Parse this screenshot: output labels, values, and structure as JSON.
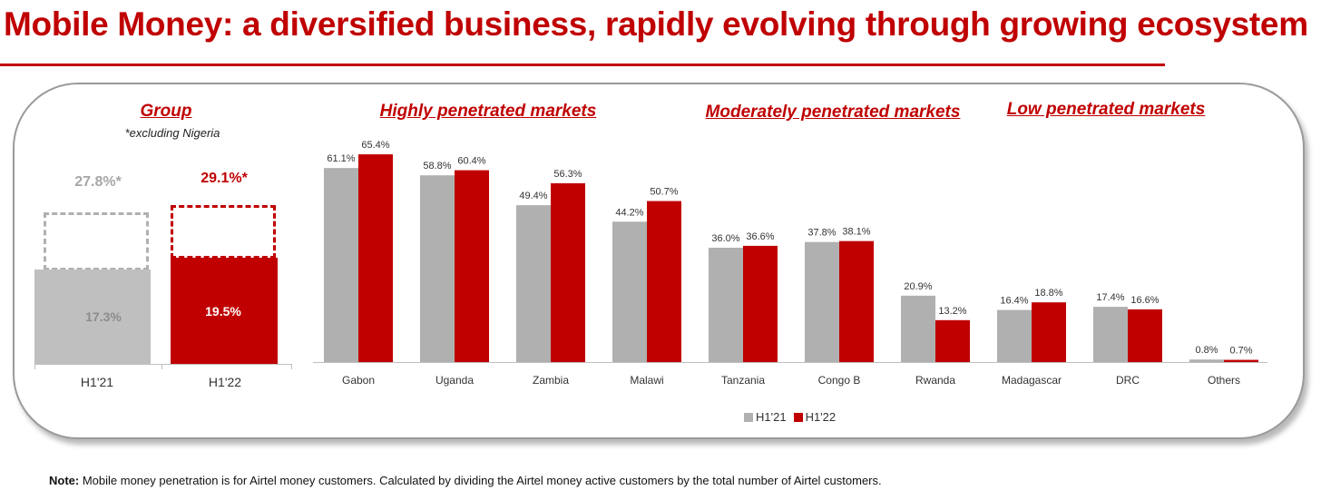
{
  "title": "Mobile Money: a diversified business, rapidly evolving through growing ecosystem",
  "colors": {
    "h121": "#b0b0b0",
    "h122": "#c00000",
    "accent": "#c00000"
  },
  "sections": {
    "group": "Group",
    "group_note": "*excluding Nigeria",
    "high": "Highly penetrated markets",
    "moderate": "Moderately penetrated markets",
    "low": "Low penetrated markets"
  },
  "group_chart": {
    "categories": [
      "H1'21",
      "H1'22"
    ],
    "values": [
      17.3,
      19.5
    ],
    "value_labels": [
      "17.3%",
      "19.5%"
    ],
    "totals": [
      27.8,
      29.1
    ],
    "total_labels": [
      "27.8%*",
      "29.1%*"
    ]
  },
  "chart_data": {
    "type": "bar",
    "categories": [
      "Gabon",
      "Uganda",
      "Zambia",
      "Malawi",
      "Tanzania",
      "Congo B",
      "Rwanda",
      "Madagascar",
      "DRC",
      "Others"
    ],
    "series": [
      {
        "name": "H1'21",
        "values": [
          61.1,
          58.8,
          49.4,
          44.2,
          36.0,
          37.8,
          20.9,
          16.4,
          17.4,
          0.8
        ],
        "labels": [
          "61.1%",
          "58.8%",
          "49.4%",
          "44.2%",
          "36.0%",
          "37.8%",
          "20.9%",
          "16.4%",
          "17.4%",
          "0.8%"
        ]
      },
      {
        "name": "H1'22",
        "values": [
          65.4,
          60.4,
          56.3,
          50.7,
          36.6,
          38.1,
          13.2,
          18.8,
          16.6,
          0.7
        ],
        "labels": [
          "65.4%",
          "60.4%",
          "56.3%",
          "50.7%",
          "36.6%",
          "38.1%",
          "13.2%",
          "18.8%",
          "16.6%",
          "0.7%"
        ]
      }
    ],
    "ylim": [
      0,
      70
    ],
    "legend_position": "bottom"
  },
  "legend": {
    "h121": "H1'21",
    "h122": "H1'22"
  },
  "note": {
    "label": "Note:",
    "text": " Mobile money penetration is for Airtel money customers. Calculated by dividing the Airtel money active customers by the total number of Airtel customers."
  }
}
